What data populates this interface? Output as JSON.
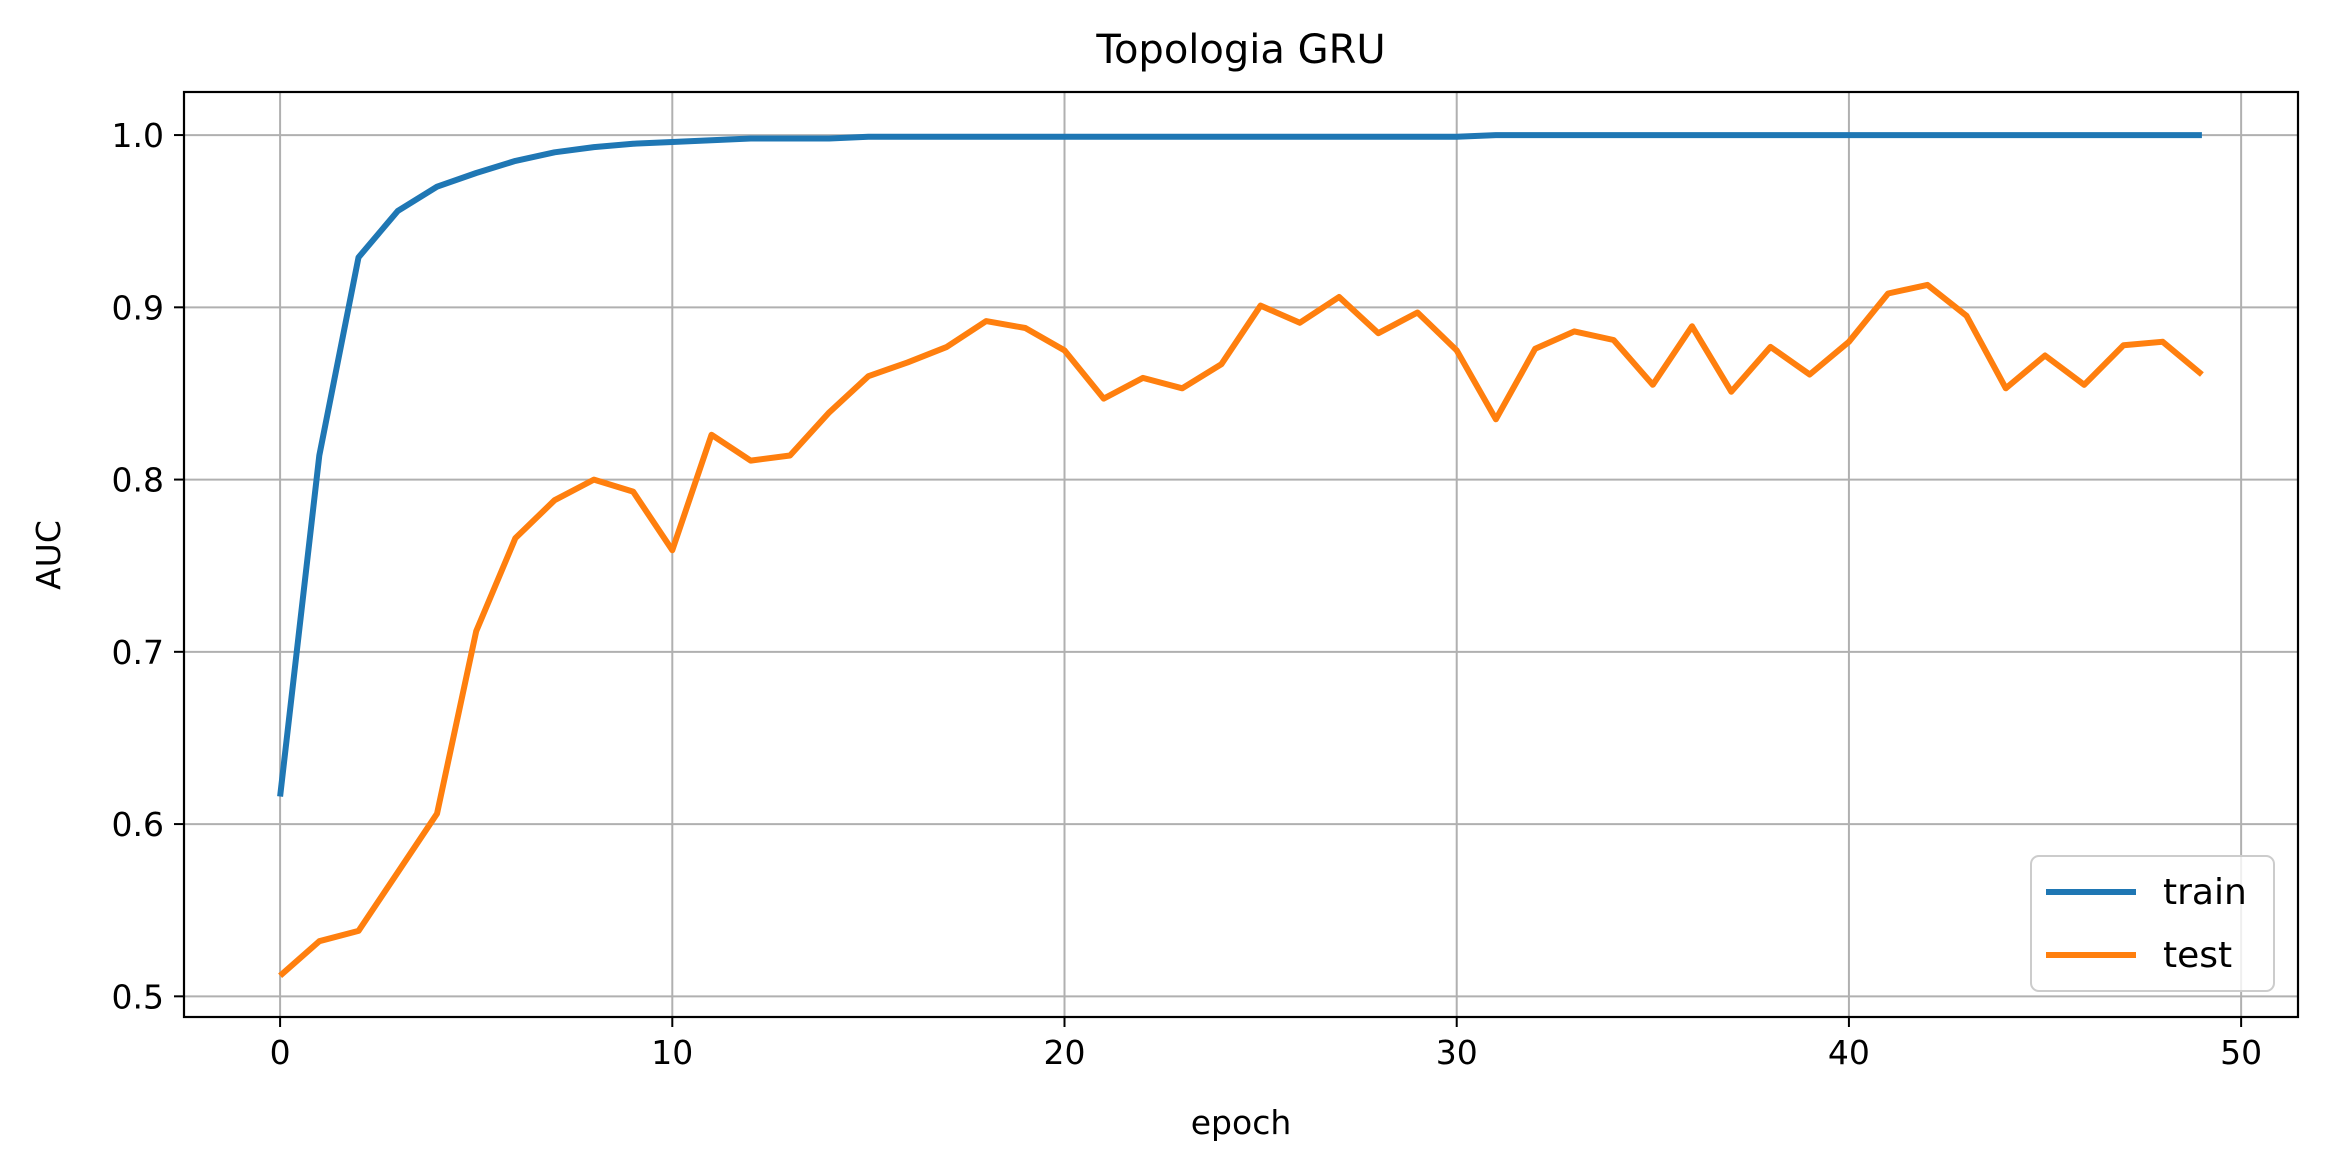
{
  "chart_data": {
    "type": "line",
    "title": "Topologia GRU",
    "xlabel": "epoch",
    "ylabel": "AUC",
    "xlim": [
      -2.45,
      51.45
    ],
    "ylim": [
      0.488,
      1.025
    ],
    "xticks": [
      0,
      10,
      20,
      30,
      40,
      50
    ],
    "yticks": [
      0.5,
      0.6,
      0.7,
      0.8,
      0.9,
      1.0
    ],
    "xtick_labels": [
      "0",
      "10",
      "20",
      "30",
      "40",
      "50"
    ],
    "ytick_labels": [
      "0.5",
      "0.6",
      "0.7",
      "0.8",
      "0.9",
      "1.0"
    ],
    "grid": true,
    "legend_position": "lower-right",
    "x": [
      0,
      1,
      2,
      3,
      4,
      5,
      6,
      7,
      8,
      9,
      10,
      11,
      12,
      13,
      14,
      15,
      16,
      17,
      18,
      19,
      20,
      21,
      22,
      23,
      24,
      25,
      26,
      27,
      28,
      29,
      30,
      31,
      32,
      33,
      34,
      35,
      36,
      37,
      38,
      39,
      40,
      41,
      42,
      43,
      44,
      45,
      46,
      47,
      48,
      49
    ],
    "series": [
      {
        "name": "train",
        "color": "#1f77b4",
        "values": [
          0.616,
          0.814,
          0.929,
          0.956,
          0.97,
          0.978,
          0.985,
          0.99,
          0.993,
          0.995,
          0.996,
          0.997,
          0.998,
          0.998,
          0.998,
          0.999,
          0.999,
          0.999,
          0.999,
          0.999,
          0.999,
          0.999,
          0.999,
          0.999,
          0.999,
          0.999,
          0.999,
          0.999,
          0.999,
          0.999,
          0.999,
          1.0,
          1.0,
          1.0,
          1.0,
          1.0,
          1.0,
          1.0,
          1.0,
          1.0,
          1.0,
          1.0,
          1.0,
          1.0,
          1.0,
          1.0,
          1.0,
          1.0,
          1.0,
          1.0
        ]
      },
      {
        "name": "test",
        "color": "#ff7f0e",
        "values": [
          0.512,
          0.532,
          0.538,
          0.572,
          0.606,
          0.712,
          0.766,
          0.788,
          0.8,
          0.793,
          0.759,
          0.826,
          0.811,
          0.814,
          0.839,
          0.86,
          0.868,
          0.877,
          0.892,
          0.888,
          0.875,
          0.847,
          0.859,
          0.853,
          0.867,
          0.901,
          0.891,
          0.906,
          0.885,
          0.897,
          0.875,
          0.835,
          0.876,
          0.886,
          0.881,
          0.855,
          0.889,
          0.851,
          0.877,
          0.861,
          0.88,
          0.908,
          0.913,
          0.895,
          0.853,
          0.872,
          0.855,
          0.878,
          0.88,
          0.861
        ]
      }
    ]
  }
}
